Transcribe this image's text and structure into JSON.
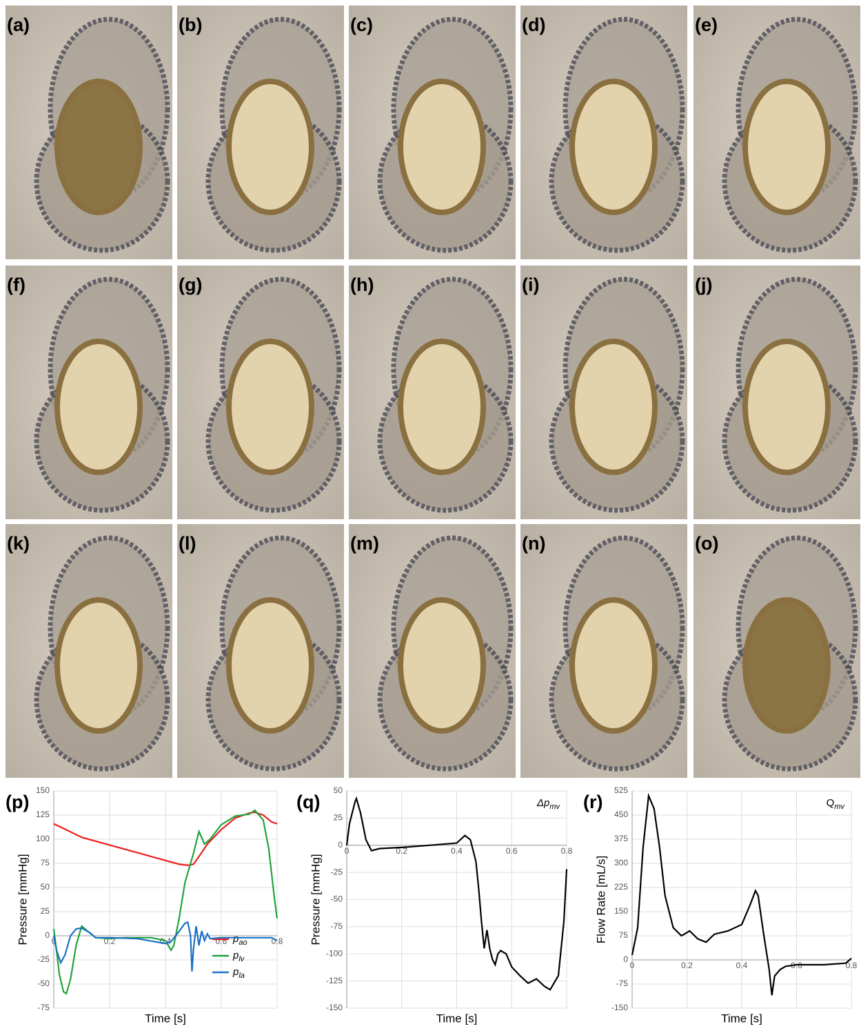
{
  "panels": [
    {
      "label": "(a)"
    },
    {
      "label": "(b)"
    },
    {
      "label": "(c)"
    },
    {
      "label": "(d)"
    },
    {
      "label": "(e)"
    },
    {
      "label": "(f)"
    },
    {
      "label": "(g)"
    },
    {
      "label": "(h)"
    },
    {
      "label": "(i)"
    },
    {
      "label": "(j)"
    },
    {
      "label": "(k)"
    },
    {
      "label": "(l)"
    },
    {
      "label": "(m)"
    },
    {
      "label": "(n)"
    },
    {
      "label": "(o)"
    }
  ],
  "chart_data": [
    {
      "type": "line",
      "panel_label": "(p)",
      "x_label": "Time [s]",
      "y_label": "Pressure [mmHg]",
      "xlim": [
        0,
        0.8
      ],
      "ylim": [
        -75,
        150
      ],
      "xticks": [
        0,
        0.2,
        0.4,
        0.6,
        0.8
      ],
      "yticks": [
        -75,
        -50,
        -25,
        0,
        25,
        50,
        75,
        100,
        125,
        150
      ],
      "grid": true,
      "series": [
        {
          "symbol": "p",
          "subscript": "ao",
          "color": "#ee1c1c",
          "x": [
            0,
            0.05,
            0.1,
            0.2,
            0.3,
            0.4,
            0.45,
            0.48,
            0.5,
            0.52,
            0.55,
            0.6,
            0.65,
            0.7,
            0.72,
            0.75,
            0.78,
            0.8
          ],
          "values": [
            116,
            109,
            102,
            94,
            86,
            78,
            74,
            73,
            74,
            82,
            95,
            110,
            122,
            127,
            128,
            125,
            118,
            116
          ]
        },
        {
          "symbol": "p",
          "subscript": "lv",
          "color": "#1fa33a",
          "x": [
            0,
            0.01,
            0.02,
            0.035,
            0.045,
            0.06,
            0.08,
            0.1,
            0.12,
            0.15,
            0.2,
            0.25,
            0.3,
            0.35,
            0.4,
            0.42,
            0.43,
            0.45,
            0.47,
            0.5,
            0.52,
            0.54,
            0.56,
            0.6,
            0.65,
            0.7,
            0.72,
            0.75,
            0.77,
            0.79,
            0.8
          ],
          "values": [
            7,
            -15,
            -40,
            -58,
            -60,
            -45,
            -10,
            10,
            5,
            -2,
            -3,
            -2,
            -2,
            -2,
            -5,
            -15,
            -10,
            20,
            55,
            85,
            108,
            95,
            100,
            115,
            124,
            126,
            130,
            120,
            90,
            40,
            18
          ]
        },
        {
          "symbol": "p",
          "subscript": "la",
          "color": "#1c6fc4",
          "x": [
            0,
            0.01,
            0.025,
            0.04,
            0.06,
            0.08,
            0.1,
            0.13,
            0.15,
            0.2,
            0.3,
            0.4,
            0.42,
            0.45,
            0.47,
            0.48,
            0.49,
            0.495,
            0.5,
            0.51,
            0.52,
            0.53,
            0.54,
            0.55,
            0.56,
            0.6,
            0.7,
            0.78,
            0.8
          ],
          "values": [
            0,
            -15,
            -28,
            -20,
            0,
            7,
            8,
            3,
            -2,
            -2,
            -3,
            -8,
            -6,
            5,
            13,
            14,
            0,
            -37,
            -15,
            10,
            -10,
            5,
            -5,
            2,
            -3,
            -2,
            -2,
            -2,
            -5
          ]
        }
      ]
    },
    {
      "type": "line",
      "panel_label": "(q)",
      "annotation": "Δp",
      "annotation_sub": "mv",
      "x_label": "Time [s]",
      "y_label": "Pressure [mmHg]",
      "xlim": [
        0,
        0.8
      ],
      "ylim": [
        -150,
        50
      ],
      "xticks": [
        0,
        0.2,
        0.4,
        0.6,
        0.8
      ],
      "yticks": [
        -150,
        -125,
        -100,
        -75,
        -50,
        -25,
        0,
        25,
        50
      ],
      "grid": true,
      "series": [
        {
          "color": "#000000",
          "x": [
            0,
            0.01,
            0.03,
            0.035,
            0.05,
            0.07,
            0.09,
            0.12,
            0.2,
            0.3,
            0.4,
            0.43,
            0.45,
            0.47,
            0.48,
            0.49,
            0.5,
            0.51,
            0.52,
            0.53,
            0.54,
            0.55,
            0.56,
            0.58,
            0.6,
            0.63,
            0.66,
            0.69,
            0.72,
            0.74,
            0.77,
            0.79,
            0.8
          ],
          "values": [
            0,
            20,
            40,
            43,
            30,
            5,
            -5,
            -3,
            -2,
            0,
            2,
            9,
            5,
            -15,
            -40,
            -70,
            -95,
            -78,
            -95,
            -105,
            -110,
            -100,
            -97,
            -100,
            -112,
            -120,
            -127,
            -123,
            -130,
            -133,
            -120,
            -70,
            -22
          ]
        }
      ]
    },
    {
      "type": "line",
      "panel_label": "(r)",
      "annotation": "Q",
      "annotation_sub": "mv",
      "x_label": "Time [s]",
      "y_label": "Flow Rate [mL/s]",
      "xlim": [
        0,
        0.8
      ],
      "ylim": [
        -150,
        525
      ],
      "xticks": [
        0,
        0.2,
        0.4,
        0.6,
        0.8
      ],
      "yticks": [
        -150,
        -75,
        0,
        75,
        150,
        225,
        300,
        375,
        450,
        525
      ],
      "grid": true,
      "series": [
        {
          "color": "#000000",
          "x": [
            0,
            0.02,
            0.04,
            0.06,
            0.08,
            0.1,
            0.12,
            0.15,
            0.18,
            0.21,
            0.24,
            0.27,
            0.3,
            0.35,
            0.4,
            0.43,
            0.45,
            0.46,
            0.48,
            0.5,
            0.51,
            0.52,
            0.54,
            0.56,
            0.6,
            0.7,
            0.78,
            0.8
          ],
          "values": [
            15,
            100,
            350,
            510,
            470,
            350,
            200,
            100,
            75,
            90,
            65,
            55,
            80,
            90,
            110,
            170,
            215,
            200,
            80,
            -30,
            -110,
            -50,
            -30,
            -20,
            -15,
            -15,
            -10,
            5
          ]
        }
      ]
    }
  ]
}
